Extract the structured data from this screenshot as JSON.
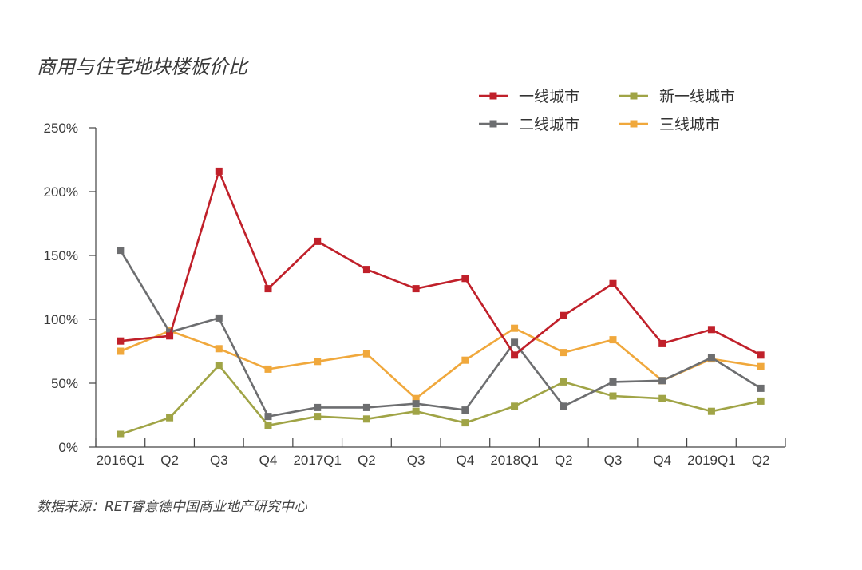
{
  "chart_data": {
    "type": "line",
    "title": "商用与住宅地块楼板价比",
    "source": "数据来源：RET睿意德中国商业地产研究中心",
    "categories": [
      "2016Q1",
      "Q2",
      "Q3",
      "Q4",
      "2017Q1",
      "Q2",
      "Q3",
      "Q4",
      "2018Q1",
      "Q2",
      "Q3",
      "Q4",
      "2019Q1",
      "Q2"
    ],
    "yticks": [
      "0%",
      "50%",
      "100%",
      "150%",
      "200%",
      "250%"
    ],
    "ylim": [
      0,
      250
    ],
    "y_unit": "%",
    "grid": false,
    "legend_position": "top-right",
    "series": [
      {
        "name": "一线城市",
        "color": "#c0202a",
        "values": [
          83,
          87,
          216,
          124,
          161,
          139,
          124,
          132,
          72,
          103,
          128,
          81,
          92,
          72
        ]
      },
      {
        "name": "二线城市",
        "color": "#6d6e70",
        "values": [
          154,
          90,
          101,
          24,
          31,
          31,
          34,
          29,
          82,
          32,
          51,
          52,
          70,
          46
        ]
      },
      {
        "name": "新一线城市",
        "color": "#a0a446",
        "values": [
          10,
          23,
          64,
          17,
          24,
          22,
          28,
          19,
          32,
          51,
          40,
          38,
          28,
          36
        ]
      },
      {
        "name": "三线城市",
        "color": "#f0a83c",
        "values": [
          75,
          91,
          77,
          61,
          67,
          73,
          38,
          68,
          93,
          74,
          84,
          52,
          69,
          63
        ]
      }
    ]
  }
}
